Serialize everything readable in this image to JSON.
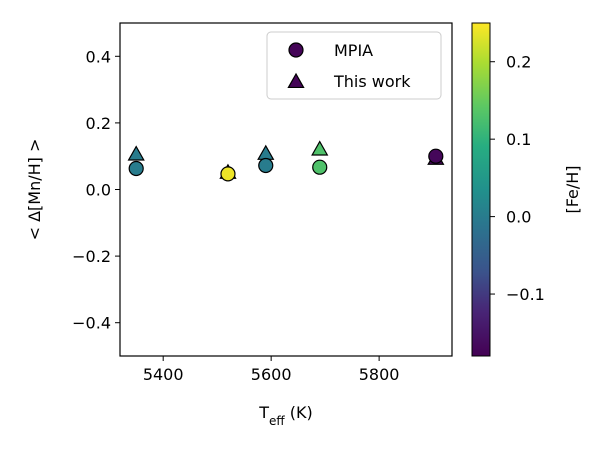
{
  "chart_data": {
    "type": "scatter",
    "x_axis": {
      "label_main": "T",
      "label_sub": "eff",
      "label_unit": " (K)",
      "xlim": [
        5320,
        5935
      ],
      "ticks": [
        5400,
        5600,
        5800
      ],
      "tick_labels": [
        "5400",
        "5600",
        "5800"
      ]
    },
    "y_axis": {
      "label": "< Δ[Mn/H] >",
      "ylim": [
        -0.5,
        0.5
      ],
      "ticks": [
        -0.4,
        -0.2,
        0.0,
        0.2,
        0.4
      ],
      "tick_labels": [
        "−0.4",
        "−0.2",
        "0.0",
        "0.2",
        "0.4"
      ]
    },
    "colorbar": {
      "label": "[Fe/H]",
      "range": [
        -0.18,
        0.25
      ],
      "ticks": [
        -0.1,
        0.0,
        0.1,
        0.2
      ],
      "tick_labels": [
        "−0.1",
        "0.0",
        "0.1",
        "0.2"
      ],
      "colormap": "viridis"
    },
    "legend": {
      "position": "top-right",
      "entries": [
        {
          "label": "MPIA",
          "marker": "circle"
        },
        {
          "label": "This work",
          "marker": "triangle"
        }
      ]
    },
    "series": [
      {
        "name": "MPIA",
        "marker": "circle",
        "points": [
          {
            "x": 5350,
            "y": 0.063,
            "feh": 0.0
          },
          {
            "x": 5520,
            "y": 0.047,
            "feh": 0.24
          },
          {
            "x": 5590,
            "y": 0.072,
            "feh": 0.0
          },
          {
            "x": 5690,
            "y": 0.067,
            "feh": 0.13
          },
          {
            "x": 5905,
            "y": 0.1,
            "feh": -0.17
          }
        ]
      },
      {
        "name": "This work",
        "marker": "triangle",
        "points": [
          {
            "x": 5350,
            "y": 0.105,
            "feh": 0.0
          },
          {
            "x": 5520,
            "y": 0.05,
            "feh": 0.24
          },
          {
            "x": 5590,
            "y": 0.107,
            "feh": 0.0
          },
          {
            "x": 5690,
            "y": 0.12,
            "feh": 0.13
          },
          {
            "x": 5905,
            "y": 0.092,
            "feh": -0.17
          }
        ]
      }
    ]
  }
}
